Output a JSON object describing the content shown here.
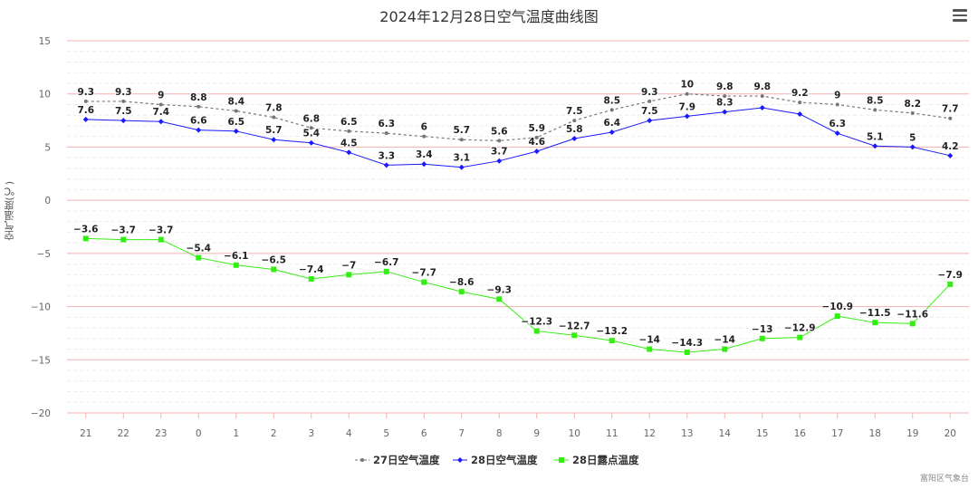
{
  "title": "2024年12月28日空气温度曲线图",
  "credit": "富阳区气象台",
  "menu_icon": "hamburger-menu-icon",
  "chart_data": {
    "type": "line",
    "title": "2024年12月28日空气温度曲线图",
    "ylabel": "空气温度(℃)",
    "xlabel": "",
    "ylim": [
      -20,
      15
    ],
    "yticks": [
      15,
      10,
      5,
      0,
      -5,
      -10,
      -15,
      -20
    ],
    "grid": true,
    "legend": "bottom",
    "categories": [
      "21",
      "22",
      "23",
      "0",
      "1",
      "2",
      "3",
      "4",
      "5",
      "6",
      "7",
      "8",
      "9",
      "10",
      "11",
      "12",
      "13",
      "14",
      "15",
      "16",
      "17",
      "18",
      "19",
      "20"
    ],
    "series": [
      {
        "name": "27日空气温度",
        "color": "#777777",
        "dash": true,
        "marker": "circle",
        "values": [
          9.3,
          9.3,
          9,
          8.8,
          8.4,
          7.8,
          6.8,
          6.5,
          6.3,
          6,
          5.7,
          5.6,
          5.9,
          7.5,
          8.5,
          9.3,
          10,
          9.8,
          9.8,
          9.2,
          9,
          8.5,
          8.2,
          7.7
        ],
        "unlabeled": []
      },
      {
        "name": "28日空气温度",
        "color": "#1a1aff",
        "dash": false,
        "marker": "diamond",
        "values": [
          7.6,
          7.5,
          7.4,
          6.6,
          6.5,
          5.7,
          5.4,
          4.5,
          3.3,
          3.4,
          3.1,
          3.7,
          4.6,
          5.8,
          6.4,
          7.5,
          7.9,
          8.3,
          8.7,
          8.1,
          6.3,
          5.1,
          5,
          4.2
        ],
        "unlabeled": [
          18,
          19
        ]
      },
      {
        "name": "28日露点温度",
        "color": "#33ee11",
        "dash": false,
        "marker": "square",
        "values": [
          -3.6,
          -3.7,
          -3.7,
          -5.4,
          -6.1,
          -6.5,
          -7.4,
          -7,
          -6.7,
          -7.7,
          -8.6,
          -9.3,
          -12.3,
          -12.7,
          -13.2,
          -14,
          -14.3,
          -14,
          -13,
          -12.9,
          -10.9,
          -11.5,
          -11.6,
          -7.9
        ],
        "unlabeled": []
      }
    ]
  }
}
